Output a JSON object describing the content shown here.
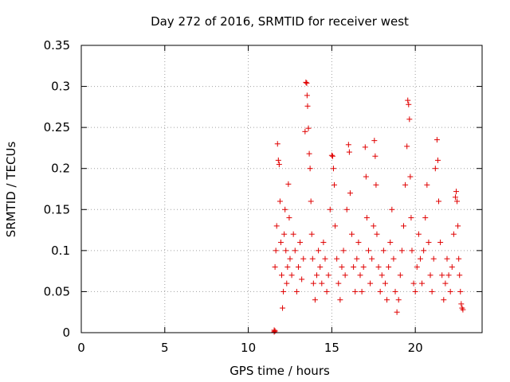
{
  "chart_data": {
    "type": "scatter",
    "title": "Day 272 of 2016, SRMTID for receiver west",
    "xlabel": "GPS time / hours",
    "ylabel": "SRMTID / TECUs",
    "xlim": [
      0,
      24
    ],
    "ylim": [
      0,
      0.35
    ],
    "x_ticks": [
      0,
      5,
      10,
      15,
      20
    ],
    "y_ticks": [
      0,
      0.05,
      0.1,
      0.15,
      0.2,
      0.25,
      0.3,
      0.35
    ],
    "x_tick_labels": [
      "0",
      "5",
      "10",
      "15",
      "20"
    ],
    "y_tick_labels": [
      "0",
      "0.05",
      "0.1",
      "0.15",
      "0.2",
      "0.25",
      "0.3",
      "0.35"
    ],
    "grid": true,
    "marker": "+",
    "color": "#e00000",
    "series": [
      {
        "name": "SRMTID",
        "points": [
          [
            11.55,
            0.001
          ],
          [
            11.55,
            0.003
          ],
          [
            11.6,
            0.002
          ],
          [
            11.6,
            0.08
          ],
          [
            11.65,
            0.1
          ],
          [
            11.7,
            0.13
          ],
          [
            11.75,
            0.23
          ],
          [
            11.8,
            0.21
          ],
          [
            11.85,
            0.205
          ],
          [
            11.9,
            0.16
          ],
          [
            11.95,
            0.11
          ],
          [
            12.0,
            0.07
          ],
          [
            12.05,
            0.03
          ],
          [
            12.1,
            0.05
          ],
          [
            12.15,
            0.12
          ],
          [
            12.2,
            0.15
          ],
          [
            12.25,
            0.1
          ],
          [
            12.3,
            0.06
          ],
          [
            12.35,
            0.08
          ],
          [
            12.4,
            0.181
          ],
          [
            12.45,
            0.14
          ],
          [
            12.5,
            0.09
          ],
          [
            12.6,
            0.07
          ],
          [
            12.7,
            0.12
          ],
          [
            12.8,
            0.1
          ],
          [
            12.9,
            0.05
          ],
          [
            13.0,
            0.08
          ],
          [
            13.1,
            0.11
          ],
          [
            13.2,
            0.065
          ],
          [
            13.3,
            0.09
          ],
          [
            13.4,
            0.245
          ],
          [
            13.45,
            0.305
          ],
          [
            13.5,
            0.304
          ],
          [
            13.52,
            0.289
          ],
          [
            13.55,
            0.276
          ],
          [
            13.6,
            0.249
          ],
          [
            13.65,
            0.218
          ],
          [
            13.7,
            0.2
          ],
          [
            13.75,
            0.16
          ],
          [
            13.8,
            0.12
          ],
          [
            13.85,
            0.09
          ],
          [
            13.9,
            0.06
          ],
          [
            14.0,
            0.04
          ],
          [
            14.1,
            0.07
          ],
          [
            14.2,
            0.1
          ],
          [
            14.3,
            0.08
          ],
          [
            14.4,
            0.06
          ],
          [
            14.5,
            0.11
          ],
          [
            14.6,
            0.09
          ],
          [
            14.7,
            0.05
          ],
          [
            14.8,
            0.07
          ],
          [
            14.9,
            0.15
          ],
          [
            15.0,
            0.216
          ],
          [
            15.05,
            0.215
          ],
          [
            15.1,
            0.2
          ],
          [
            15.15,
            0.18
          ],
          [
            15.2,
            0.13
          ],
          [
            15.3,
            0.09
          ],
          [
            15.4,
            0.06
          ],
          [
            15.5,
            0.04
          ],
          [
            15.6,
            0.08
          ],
          [
            15.7,
            0.1
          ],
          [
            15.8,
            0.07
          ],
          [
            15.9,
            0.15
          ],
          [
            16.0,
            0.229
          ],
          [
            16.05,
            0.22
          ],
          [
            16.1,
            0.17
          ],
          [
            16.2,
            0.12
          ],
          [
            16.3,
            0.08
          ],
          [
            16.4,
            0.05
          ],
          [
            16.5,
            0.09
          ],
          [
            16.6,
            0.11
          ],
          [
            16.7,
            0.07
          ],
          [
            16.8,
            0.05
          ],
          [
            16.9,
            0.08
          ],
          [
            17.0,
            0.226
          ],
          [
            17.05,
            0.19
          ],
          [
            17.1,
            0.14
          ],
          [
            17.2,
            0.1
          ],
          [
            17.3,
            0.06
          ],
          [
            17.4,
            0.09
          ],
          [
            17.5,
            0.13
          ],
          [
            17.55,
            0.234
          ],
          [
            17.6,
            0.215
          ],
          [
            17.65,
            0.18
          ],
          [
            17.7,
            0.12
          ],
          [
            17.8,
            0.08
          ],
          [
            17.9,
            0.05
          ],
          [
            18.0,
            0.07
          ],
          [
            18.1,
            0.1
          ],
          [
            18.2,
            0.06
          ],
          [
            18.3,
            0.04
          ],
          [
            18.4,
            0.08
          ],
          [
            18.5,
            0.11
          ],
          [
            18.6,
            0.15
          ],
          [
            18.7,
            0.09
          ],
          [
            18.8,
            0.05
          ],
          [
            18.9,
            0.025
          ],
          [
            19.0,
            0.04
          ],
          [
            19.1,
            0.07
          ],
          [
            19.2,
            0.1
          ],
          [
            19.3,
            0.13
          ],
          [
            19.4,
            0.18
          ],
          [
            19.5,
            0.227
          ],
          [
            19.55,
            0.283
          ],
          [
            19.6,
            0.278
          ],
          [
            19.65,
            0.26
          ],
          [
            19.7,
            0.19
          ],
          [
            19.75,
            0.14
          ],
          [
            19.8,
            0.1
          ],
          [
            19.9,
            0.06
          ],
          [
            20.0,
            0.05
          ],
          [
            20.1,
            0.08
          ],
          [
            20.2,
            0.12
          ],
          [
            20.3,
            0.09
          ],
          [
            20.4,
            0.06
          ],
          [
            20.5,
            0.1
          ],
          [
            20.6,
            0.14
          ],
          [
            20.7,
            0.18
          ],
          [
            20.8,
            0.11
          ],
          [
            20.9,
            0.07
          ],
          [
            21.0,
            0.05
          ],
          [
            21.1,
            0.09
          ],
          [
            21.2,
            0.2
          ],
          [
            21.3,
            0.235
          ],
          [
            21.35,
            0.21
          ],
          [
            21.4,
            0.16
          ],
          [
            21.5,
            0.11
          ],
          [
            21.6,
            0.07
          ],
          [
            21.7,
            0.04
          ],
          [
            21.8,
            0.06
          ],
          [
            21.9,
            0.09
          ],
          [
            22.0,
            0.07
          ],
          [
            22.1,
            0.05
          ],
          [
            22.2,
            0.08
          ],
          [
            22.3,
            0.12
          ],
          [
            22.4,
            0.165
          ],
          [
            22.45,
            0.172
          ],
          [
            22.5,
            0.16
          ],
          [
            22.55,
            0.13
          ],
          [
            22.6,
            0.09
          ],
          [
            22.65,
            0.07
          ],
          [
            22.7,
            0.05
          ],
          [
            22.75,
            0.035
          ],
          [
            22.8,
            0.03
          ],
          [
            22.85,
            0.028
          ]
        ]
      }
    ]
  }
}
